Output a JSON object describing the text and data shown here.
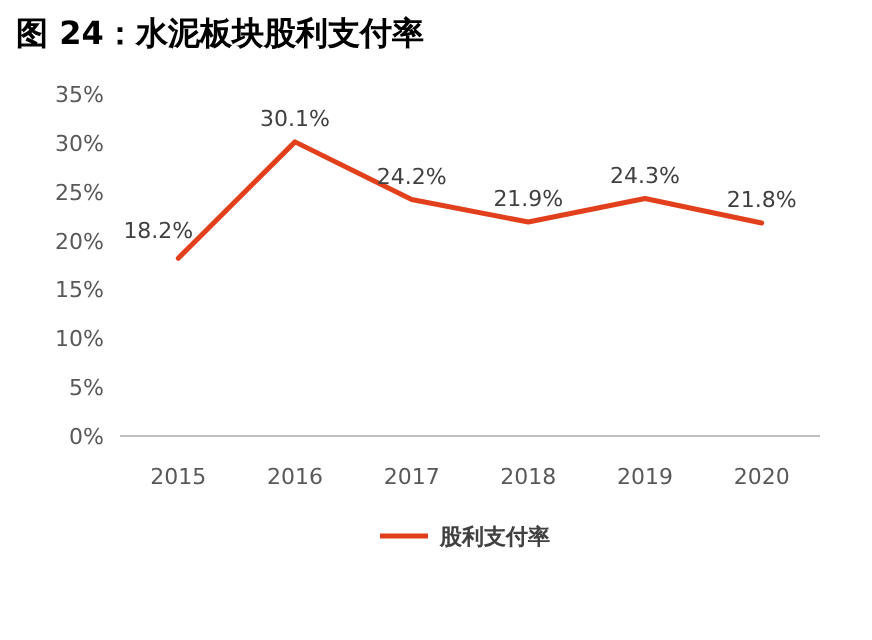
{
  "chart_data": {
    "type": "line",
    "title": "图 24：水泥板块股利支付率",
    "categories": [
      "2015",
      "2016",
      "2017",
      "2018",
      "2019",
      "2020"
    ],
    "series": [
      {
        "name": "股利支付率",
        "color": "#e2401c",
        "values": [
          18.2,
          30.1,
          24.2,
          21.9,
          24.3,
          21.8
        ],
        "value_labels": [
          "18.2%",
          "30.1%",
          "24.2%",
          "21.9%",
          "24.3%",
          "21.8%"
        ]
      }
    ],
    "ylim": [
      0,
      35
    ],
    "yticks": [
      {
        "value": 0,
        "label": "0%"
      },
      {
        "value": 5,
        "label": "5%"
      },
      {
        "value": 10,
        "label": "10%"
      },
      {
        "value": 15,
        "label": "15%"
      },
      {
        "value": 20,
        "label": "20%"
      },
      {
        "value": 25,
        "label": "25%"
      },
      {
        "value": 30,
        "label": "30%"
      },
      {
        "value": 35,
        "label": "35%"
      }
    ],
    "legend": "bottom"
  }
}
